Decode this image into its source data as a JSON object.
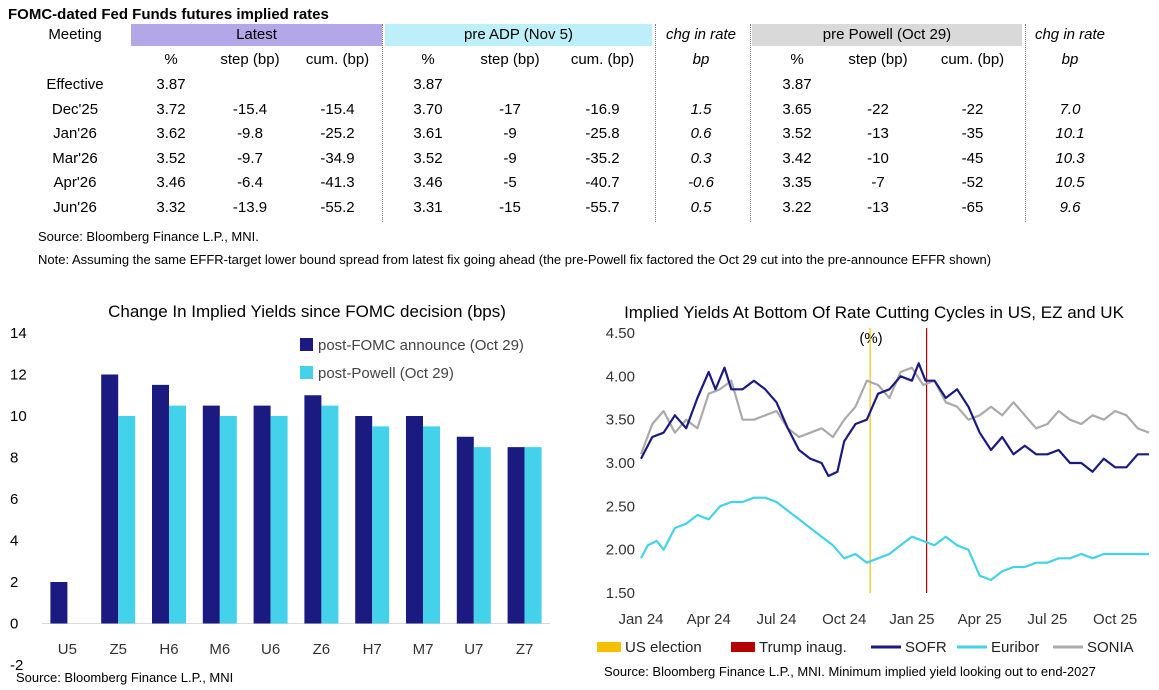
{
  "table": {
    "title": "FOMC-dated Fed Funds futures implied rates",
    "meeting_label": "Meeting",
    "groups": {
      "latest": "Latest",
      "pre_adp": "pre ADP (Nov 5)",
      "chg1": "chg in rate",
      "pre_powell": "pre Powell (Oct 29)",
      "chg2": "chg in rate"
    },
    "subheaders": {
      "pct": "%",
      "step": "step (bp)",
      "cum": "cum. (bp)",
      "bp": "bp"
    },
    "rows": [
      {
        "meeting": "Effective",
        "l_pct": "3.87",
        "l_step": "",
        "l_cum": "",
        "a_pct": "3.87",
        "a_step": "",
        "a_cum": "",
        "chg1": "",
        "p_pct": "3.87",
        "p_step": "",
        "p_cum": "",
        "chg2": ""
      },
      {
        "meeting": "Dec'25",
        "l_pct": "3.72",
        "l_step": "-15.4",
        "l_cum": "-15.4",
        "a_pct": "3.70",
        "a_step": "-17",
        "a_cum": "-16.9",
        "chg1": "1.5",
        "p_pct": "3.65",
        "p_step": "-22",
        "p_cum": "-22",
        "chg2": "7.0"
      },
      {
        "meeting": "Jan'26",
        "l_pct": "3.62",
        "l_step": "-9.8",
        "l_cum": "-25.2",
        "a_pct": "3.61",
        "a_step": "-9",
        "a_cum": "-25.8",
        "chg1": "0.6",
        "p_pct": "3.52",
        "p_step": "-13",
        "p_cum": "-35",
        "chg2": "10.1"
      },
      {
        "meeting": "Mar'26",
        "l_pct": "3.52",
        "l_step": "-9.7",
        "l_cum": "-34.9",
        "a_pct": "3.52",
        "a_step": "-9",
        "a_cum": "-35.2",
        "chg1": "0.3",
        "p_pct": "3.42",
        "p_step": "-10",
        "p_cum": "-45",
        "chg2": "10.3"
      },
      {
        "meeting": "Apr'26",
        "l_pct": "3.46",
        "l_step": "-6.4",
        "l_cum": "-41.3",
        "a_pct": "3.46",
        "a_step": "-5",
        "a_cum": "-40.7",
        "chg1": "-0.6",
        "p_pct": "3.35",
        "p_step": "-7",
        "p_cum": "-52",
        "chg2": "10.5"
      },
      {
        "meeting": "Jun'26",
        "l_pct": "3.32",
        "l_step": "-13.9",
        "l_cum": "-55.2",
        "a_pct": "3.31",
        "a_step": "-15",
        "a_cum": "-55.7",
        "chg1": "0.5",
        "p_pct": "3.22",
        "p_step": "-13",
        "p_cum": "-65",
        "chg2": "9.6"
      }
    ],
    "source": "Source: Bloomberg Finance L.P., MNI.",
    "note": "Note: Assuming the same  EFFR-target lower bound spread from latest fix going ahead (the pre-Powell fix factored the Oct 29 cut into the pre-announce EFFR shown)"
  },
  "colors": {
    "latest_band": "#b4a7e8",
    "pre_adp_band": "#bdeff9",
    "pre_powell_band": "#d9d9d9",
    "dark_bar": "#1a1a80",
    "light_bar": "#44d2ea",
    "sofr": "#1a1a80",
    "euribor": "#44d2ea",
    "sonia": "#aaaaaa",
    "us_election": "#f5c000",
    "trump_inaug": "#b40000"
  },
  "chart_data": [
    {
      "type": "bar",
      "title": "Change In Implied Yields since FOMC decision (bps)",
      "categories": [
        "U5",
        "Z5",
        "H6",
        "M6",
        "U6",
        "Z6",
        "H7",
        "M7",
        "U7",
        "Z7"
      ],
      "series": [
        {
          "name": "post-FOMC announce (Oct 29)",
          "values": [
            2,
            12,
            11.5,
            10.5,
            10.5,
            11,
            10,
            10,
            9,
            8.5
          ]
        },
        {
          "name": "post-Powell (Oct 29)",
          "values": [
            0,
            10,
            10.5,
            10,
            10,
            10.5,
            9.5,
            9.5,
            8.5,
            8.5
          ]
        }
      ],
      "ylim": [
        -2,
        14
      ],
      "yticks": [
        "-2",
        "0",
        "2",
        "4",
        "6",
        "8",
        "10",
        "12",
        "14"
      ],
      "legend": "top-right",
      "source": "Source: Bloomberg Finance L.P., MNI"
    },
    {
      "type": "line",
      "title": "Implied Yields At Bottom Of Rate Cutting Cycles in US, EZ and UK",
      "unit": "(%)",
      "x_range_months": [
        0,
        22.5
      ],
      "x_ticks": [
        {
          "label": "Jan 24",
          "m": 0
        },
        {
          "label": "Apr 24",
          "m": 3
        },
        {
          "label": "Jul 24",
          "m": 6
        },
        {
          "label": "Oct 24",
          "m": 9
        },
        {
          "label": "Jan 25",
          "m": 12
        },
        {
          "label": "Apr 25",
          "m": 15
        },
        {
          "label": "Jul 25",
          "m": 18
        },
        {
          "label": "Oct 25",
          "m": 21
        }
      ],
      "ylim": [
        1.5,
        4.5
      ],
      "yticks": [
        "1.50",
        "2.00",
        "2.50",
        "3.00",
        "3.50",
        "4.00",
        "4.50"
      ],
      "events": [
        {
          "name": "US election",
          "m": 10.15
        },
        {
          "name": "Trump inaug.",
          "m": 12.65
        }
      ],
      "series": [
        {
          "name": "SOFR",
          "points": [
            [
              0,
              3.05
            ],
            [
              0.5,
              3.3
            ],
            [
              1,
              3.35
            ],
            [
              1.5,
              3.55
            ],
            [
              2,
              3.4
            ],
            [
              2.5,
              3.75
            ],
            [
              3,
              4.05
            ],
            [
              3.3,
              3.85
            ],
            [
              3.7,
              4.1
            ],
            [
              4,
              3.85
            ],
            [
              4.5,
              3.85
            ],
            [
              5,
              3.95
            ],
            [
              5.5,
              3.85
            ],
            [
              6,
              3.7
            ],
            [
              6.5,
              3.4
            ],
            [
              7,
              3.15
            ],
            [
              7.5,
              3.05
            ],
            [
              8,
              3.0
            ],
            [
              8.3,
              2.85
            ],
            [
              8.7,
              2.9
            ],
            [
              9,
              3.25
            ],
            [
              9.5,
              3.45
            ],
            [
              10,
              3.5
            ],
            [
              10.5,
              3.8
            ],
            [
              11,
              3.85
            ],
            [
              11.5,
              4.0
            ],
            [
              12,
              3.95
            ],
            [
              12.3,
              4.15
            ],
            [
              12.6,
              3.95
            ],
            [
              13,
              3.95
            ],
            [
              13.5,
              3.75
            ],
            [
              14,
              3.85
            ],
            [
              14.5,
              3.65
            ],
            [
              15,
              3.35
            ],
            [
              15.5,
              3.15
            ],
            [
              16,
              3.3
            ],
            [
              16.5,
              3.1
            ],
            [
              17,
              3.2
            ],
            [
              17.5,
              3.1
            ],
            [
              18,
              3.1
            ],
            [
              18.5,
              3.15
            ],
            [
              19,
              3.0
            ],
            [
              19.5,
              3.0
            ],
            [
              20,
              2.9
            ],
            [
              20.5,
              3.05
            ],
            [
              21,
              2.95
            ],
            [
              21.5,
              2.95
            ],
            [
              22,
              3.1
            ],
            [
              22.5,
              3.1
            ]
          ]
        },
        {
          "name": "Euribor",
          "points": [
            [
              0,
              1.9
            ],
            [
              0.3,
              2.05
            ],
            [
              0.7,
              2.1
            ],
            [
              1,
              2.0
            ],
            [
              1.5,
              2.25
            ],
            [
              2,
              2.3
            ],
            [
              2.5,
              2.4
            ],
            [
              3,
              2.35
            ],
            [
              3.5,
              2.5
            ],
            [
              4,
              2.55
            ],
            [
              4.5,
              2.55
            ],
            [
              5,
              2.6
            ],
            [
              5.5,
              2.6
            ],
            [
              6,
              2.55
            ],
            [
              6.5,
              2.45
            ],
            [
              7,
              2.35
            ],
            [
              7.5,
              2.25
            ],
            [
              8,
              2.15
            ],
            [
              8.5,
              2.05
            ],
            [
              9,
              1.9
            ],
            [
              9.5,
              1.95
            ],
            [
              10,
              1.85
            ],
            [
              10.5,
              1.9
            ],
            [
              11,
              1.95
            ],
            [
              11.5,
              2.05
            ],
            [
              12,
              2.15
            ],
            [
              12.5,
              2.1
            ],
            [
              13,
              2.05
            ],
            [
              13.5,
              2.15
            ],
            [
              14,
              2.05
            ],
            [
              14.5,
              2.0
            ],
            [
              15,
              1.7
            ],
            [
              15.5,
              1.65
            ],
            [
              16,
              1.75
            ],
            [
              16.5,
              1.8
            ],
            [
              17,
              1.8
            ],
            [
              17.5,
              1.85
            ],
            [
              18,
              1.85
            ],
            [
              18.5,
              1.9
            ],
            [
              19,
              1.9
            ],
            [
              19.5,
              1.95
            ],
            [
              20,
              1.9
            ],
            [
              20.5,
              1.95
            ],
            [
              21,
              1.95
            ],
            [
              21.5,
              1.95
            ],
            [
              22,
              1.95
            ],
            [
              22.5,
              1.95
            ]
          ]
        },
        {
          "name": "SONIA",
          "points": [
            [
              0,
              3.1
            ],
            [
              0.5,
              3.45
            ],
            [
              1,
              3.6
            ],
            [
              1.5,
              3.35
            ],
            [
              2,
              3.5
            ],
            [
              2.5,
              3.4
            ],
            [
              3,
              3.8
            ],
            [
              3.5,
              3.85
            ],
            [
              4,
              3.95
            ],
            [
              4.5,
              3.5
            ],
            [
              5,
              3.5
            ],
            [
              5.5,
              3.55
            ],
            [
              6,
              3.6
            ],
            [
              6.5,
              3.4
            ],
            [
              7,
              3.3
            ],
            [
              7.5,
              3.35
            ],
            [
              8,
              3.4
            ],
            [
              8.5,
              3.3
            ],
            [
              9,
              3.5
            ],
            [
              9.5,
              3.65
            ],
            [
              10,
              3.95
            ],
            [
              10.5,
              3.9
            ],
            [
              11,
              3.75
            ],
            [
              11.5,
              4.05
            ],
            [
              12,
              4.1
            ],
            [
              12.5,
              3.9
            ],
            [
              13,
              3.95
            ],
            [
              13.5,
              3.7
            ],
            [
              14,
              3.65
            ],
            [
              14.5,
              3.5
            ],
            [
              15,
              3.55
            ],
            [
              15.5,
              3.65
            ],
            [
              16,
              3.55
            ],
            [
              16.5,
              3.7
            ],
            [
              17,
              3.55
            ],
            [
              17.5,
              3.4
            ],
            [
              18,
              3.45
            ],
            [
              18.5,
              3.6
            ],
            [
              19,
              3.5
            ],
            [
              19.5,
              3.45
            ],
            [
              20,
              3.55
            ],
            [
              20.5,
              3.5
            ],
            [
              21,
              3.6
            ],
            [
              21.5,
              3.55
            ],
            [
              22,
              3.4
            ],
            [
              22.5,
              3.35
            ]
          ]
        }
      ],
      "legend": [
        "US election",
        "Trump inaug.",
        "SOFR",
        "Euribor",
        "SONIA"
      ],
      "source": "Source: Bloomberg Finance L.P., MNI. Minimum implied yield looking out to end-2027"
    }
  ]
}
